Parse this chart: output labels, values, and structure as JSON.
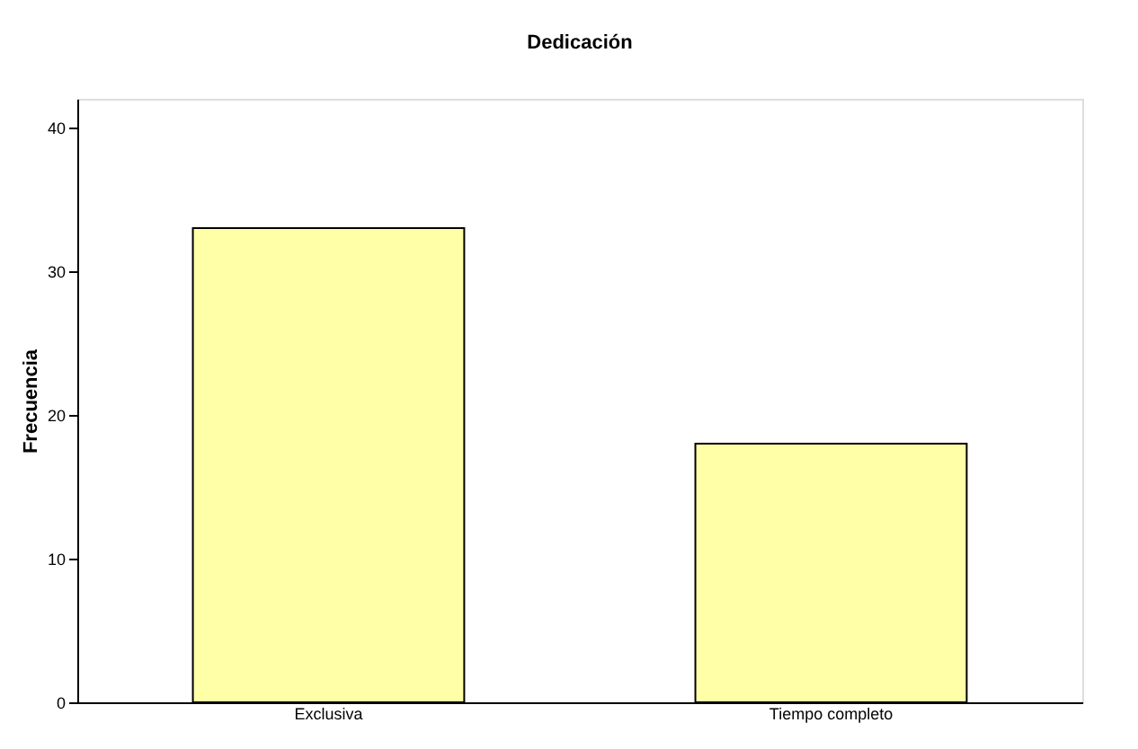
{
  "chart_data": {
    "type": "bar",
    "title": "Dedicación",
    "ylabel": "Frecuencia",
    "categories": [
      "Exclusiva",
      "Tiempo completo"
    ],
    "values": [
      33,
      18
    ],
    "color": "#ffffa8",
    "ylim": [
      0,
      42
    ],
    "yticks": [
      0,
      10,
      20,
      30,
      40
    ],
    "grid": false
  }
}
